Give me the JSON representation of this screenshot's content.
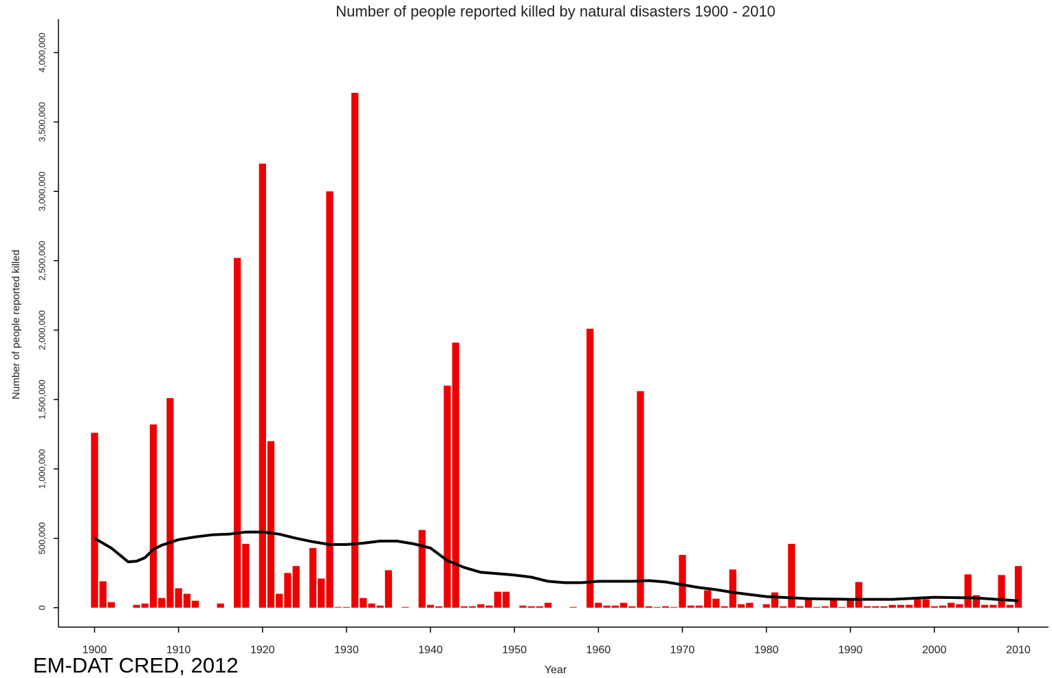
{
  "chart_data": {
    "type": "bar",
    "title": "Number of people reported killed by natural disasters 1900 - 2010",
    "x_label": "Year",
    "y_label": "Number of people reported killed",
    "source": "EM-DAT CRED, 2012",
    "x": [
      1900,
      1901,
      1902,
      1903,
      1904,
      1905,
      1906,
      1907,
      1908,
      1909,
      1910,
      1911,
      1912,
      1913,
      1914,
      1915,
      1916,
      1917,
      1918,
      1919,
      1920,
      1921,
      1922,
      1923,
      1924,
      1925,
      1926,
      1927,
      1928,
      1929,
      1930,
      1931,
      1932,
      1933,
      1934,
      1935,
      1936,
      1937,
      1938,
      1939,
      1940,
      1941,
      1942,
      1943,
      1944,
      1945,
      1946,
      1947,
      1948,
      1949,
      1950,
      1951,
      1952,
      1953,
      1954,
      1955,
      1956,
      1957,
      1958,
      1959,
      1960,
      1961,
      1962,
      1963,
      1964,
      1965,
      1966,
      1967,
      1968,
      1969,
      1970,
      1971,
      1972,
      1973,
      1974,
      1975,
      1976,
      1977,
      1978,
      1979,
      1980,
      1981,
      1982,
      1983,
      1984,
      1985,
      1986,
      1987,
      1988,
      1989,
      1990,
      1991,
      1992,
      1993,
      1994,
      1995,
      1996,
      1997,
      1998,
      1999,
      2000,
      2001,
      2002,
      2003,
      2004,
      2005,
      2006,
      2007,
      2008,
      2009,
      2010
    ],
    "series": [
      {
        "type": "bar",
        "color": "#ee0000",
        "values": [
          1260000,
          190000,
          40000,
          0,
          0,
          20000,
          30000,
          1320000,
          70000,
          1510000,
          140000,
          100000,
          50000,
          0,
          0,
          30000,
          0,
          2520000,
          460000,
          0,
          3200000,
          1200000,
          100000,
          250000,
          300000,
          0,
          430000,
          210000,
          3000000,
          5000,
          5000,
          3710000,
          70000,
          30000,
          15000,
          270000,
          0,
          5000,
          0,
          560000,
          20000,
          10000,
          1600000,
          1910000,
          10000,
          10000,
          25000,
          15000,
          115000,
          115000,
          0,
          15000,
          10000,
          10000,
          35000,
          0,
          0,
          5000,
          0,
          2010000,
          35000,
          15000,
          15000,
          35000,
          10000,
          1560000,
          10000,
          5000,
          10000,
          5000,
          380000,
          15000,
          15000,
          125000,
          65000,
          10000,
          275000,
          25000,
          35000,
          0,
          25000,
          110000,
          10000,
          460000,
          10000,
          60000,
          5000,
          10000,
          55000,
          5000,
          60000,
          185000,
          10000,
          10000,
          10000,
          20000,
          20000,
          20000,
          60000,
          60000,
          10000,
          15000,
          35000,
          25000,
          240000,
          90000,
          20000,
          20000,
          235000,
          20000,
          300000
        ]
      },
      {
        "type": "line",
        "color": "#000000",
        "x": [
          1900,
          1902,
          1904,
          1905,
          1906,
          1907,
          1908,
          1909,
          1910,
          1912,
          1914,
          1916,
          1918,
          1920,
          1922,
          1924,
          1926,
          1928,
          1930,
          1932,
          1934,
          1936,
          1938,
          1940,
          1942,
          1944,
          1946,
          1948,
          1950,
          1952,
          1954,
          1956,
          1958,
          1960,
          1962,
          1964,
          1966,
          1968,
          1970,
          1972,
          1974,
          1976,
          1978,
          1980,
          1985,
          1990,
          1995,
          2000,
          2005,
          2010
        ],
        "values": [
          500000,
          430000,
          330000,
          335000,
          360000,
          420000,
          450000,
          470000,
          490000,
          510000,
          525000,
          530000,
          545000,
          545000,
          530000,
          500000,
          475000,
          455000,
          455000,
          465000,
          480000,
          480000,
          460000,
          430000,
          340000,
          290000,
          255000,
          245000,
          235000,
          220000,
          190000,
          180000,
          180000,
          190000,
          190000,
          190000,
          195000,
          185000,
          165000,
          145000,
          130000,
          110000,
          95000,
          80000,
          65000,
          60000,
          60000,
          75000,
          70000,
          50000
        ]
      }
    ],
    "xlim": [
      1895.7,
      2013.6
    ],
    "xticks": [
      1900,
      1910,
      1920,
      1930,
      1940,
      1950,
      1960,
      1970,
      1980,
      1990,
      2000,
      2010
    ],
    "ylim": [
      -140000,
      4240000
    ],
    "yticks": [
      0,
      {
        "value": 500000,
        "label": "500,000"
      },
      {
        "value": 1000000,
        "label": "1,000,000"
      },
      {
        "value": 1500000,
        "label": "1,500,000"
      },
      {
        "value": 2000000,
        "label": "2,000,000"
      },
      {
        "value": 2500000,
        "label": "2,500,000"
      },
      {
        "value": 3000000,
        "label": "3,000,000"
      },
      {
        "value": 3500000,
        "label": "3,500,000"
      },
      {
        "value": 4000000,
        "label": "4,000,000"
      }
    ]
  }
}
